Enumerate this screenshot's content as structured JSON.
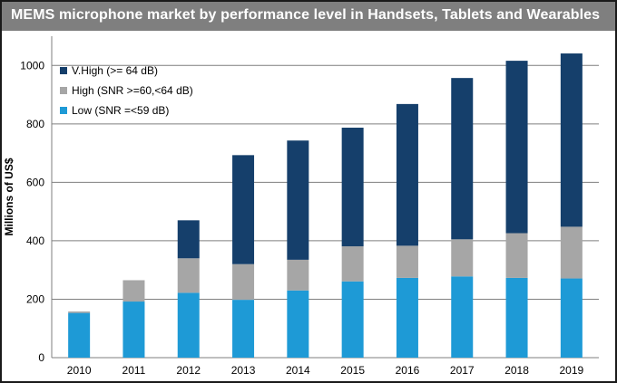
{
  "chart_data": {
    "type": "bar",
    "stacked": true,
    "title": "MEMS microphone market by performance level in Handsets, Tablets and Wearables",
    "xlabel": "",
    "ylabel": "Millions of US$",
    "ylim": [
      0,
      1100
    ],
    "yticks": [
      0,
      200,
      400,
      600,
      800,
      1000
    ],
    "grid": true,
    "legend_position": "top-left",
    "categories": [
      "2010",
      "2011",
      "2012",
      "2013",
      "2014",
      "2015",
      "2016",
      "2017",
      "2018",
      "2019"
    ],
    "series": [
      {
        "name": "Low (SNR =<59 dB)",
        "color": "#1e9ad6",
        "values": [
          153,
          192,
          222,
          198,
          230,
          261,
          273,
          278,
          273,
          271
        ]
      },
      {
        "name": "High (SNR >=60,<64 dB)",
        "color": "#a6a6a6",
        "values": [
          5,
          73,
          118,
          122,
          105,
          120,
          110,
          127,
          153,
          177
        ]
      },
      {
        "name": "V.High (>= 64 dB)",
        "color": "#153f6b",
        "values": [
          0,
          0,
          130,
          373,
          408,
          406,
          485,
          552,
          590,
          593
        ]
      }
    ],
    "legend_order": [
      2,
      1,
      0
    ]
  }
}
